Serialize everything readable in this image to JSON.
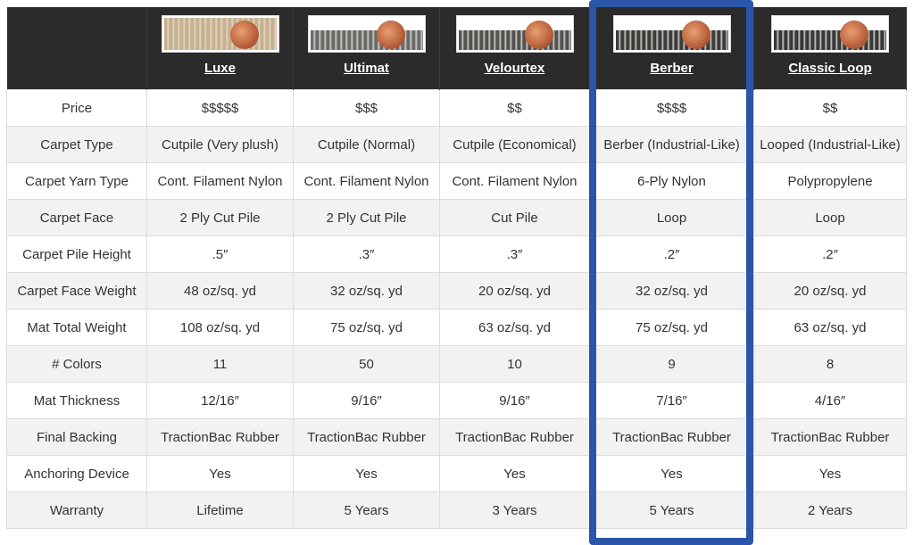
{
  "highlight_color": "#2a55a8",
  "products": [
    {
      "name": "Luxe",
      "image": "luxe-carpet-sample",
      "pile_color": "#c9b08a"
    },
    {
      "name": "Ultimat",
      "image": "ultimat-carpet-sample",
      "pile_color": "#6b6b66"
    },
    {
      "name": "Velourtex",
      "image": "velourtex-carpet-sample",
      "pile_color": "#55524e"
    },
    {
      "name": "Berber",
      "image": "berber-carpet-sample",
      "pile_color": "#3e3c38"
    },
    {
      "name": "Classic Loop",
      "image": "classic-loop-carpet-sample",
      "pile_color": "#3a3836"
    }
  ],
  "rows": [
    {
      "label": "Price",
      "values": [
        "$$$$$",
        "$$$",
        "$$",
        "$$$$",
        "$$"
      ]
    },
    {
      "label": "Carpet Type",
      "values": [
        "Cutpile (Very plush)",
        "Cutpile (Normal)",
        "Cutpile (Economical)",
        "Berber (Industrial-Like)",
        "Looped (Industrial-Like)"
      ]
    },
    {
      "label": "Carpet Yarn Type",
      "values": [
        "Cont. Filament Nylon",
        "Cont. Filament Nylon",
        "Cont. Filament Nylon",
        "6-Ply Nylon",
        "Polypropylene"
      ]
    },
    {
      "label": "Carpet Face",
      "values": [
        "2 Ply Cut Pile",
        "2 Ply Cut Pile",
        "Cut Pile",
        "Loop",
        "Loop"
      ]
    },
    {
      "label": "Carpet Pile Height",
      "values": [
        ".5″",
        ".3″",
        ".3″",
        ".2″",
        ".2″"
      ]
    },
    {
      "label": "Carpet Face Weight",
      "values": [
        "48 oz/sq. yd",
        "32 oz/sq. yd",
        "20 oz/sq. yd",
        "32 oz/sq. yd",
        "20 oz/sq. yd"
      ]
    },
    {
      "label": "Mat Total Weight",
      "values": [
        "108 oz/sq. yd",
        "75 oz/sq. yd",
        "63 oz/sq. yd",
        "75 oz/sq. yd",
        "63 oz/sq. yd"
      ]
    },
    {
      "label": "# Colors",
      "values": [
        "11",
        "50",
        "10",
        "9",
        "8"
      ]
    },
    {
      "label": "Mat Thickness",
      "values": [
        "12/16″",
        "9/16″",
        "9/16″",
        "7/16″",
        "4/16″"
      ]
    },
    {
      "label": "Final Backing",
      "values": [
        "TractionBac Rubber",
        "TractionBac Rubber",
        "TractionBac Rubber",
        "TractionBac Rubber",
        "TractionBac Rubber"
      ]
    },
    {
      "label": "Anchoring Device",
      "values": [
        "Yes",
        "Yes",
        "Yes",
        "Yes",
        "Yes"
      ]
    },
    {
      "label": "Warranty",
      "values": [
        "Lifetime",
        "5 Years",
        "3 Years",
        "5 Years",
        "2 Years"
      ]
    }
  ]
}
